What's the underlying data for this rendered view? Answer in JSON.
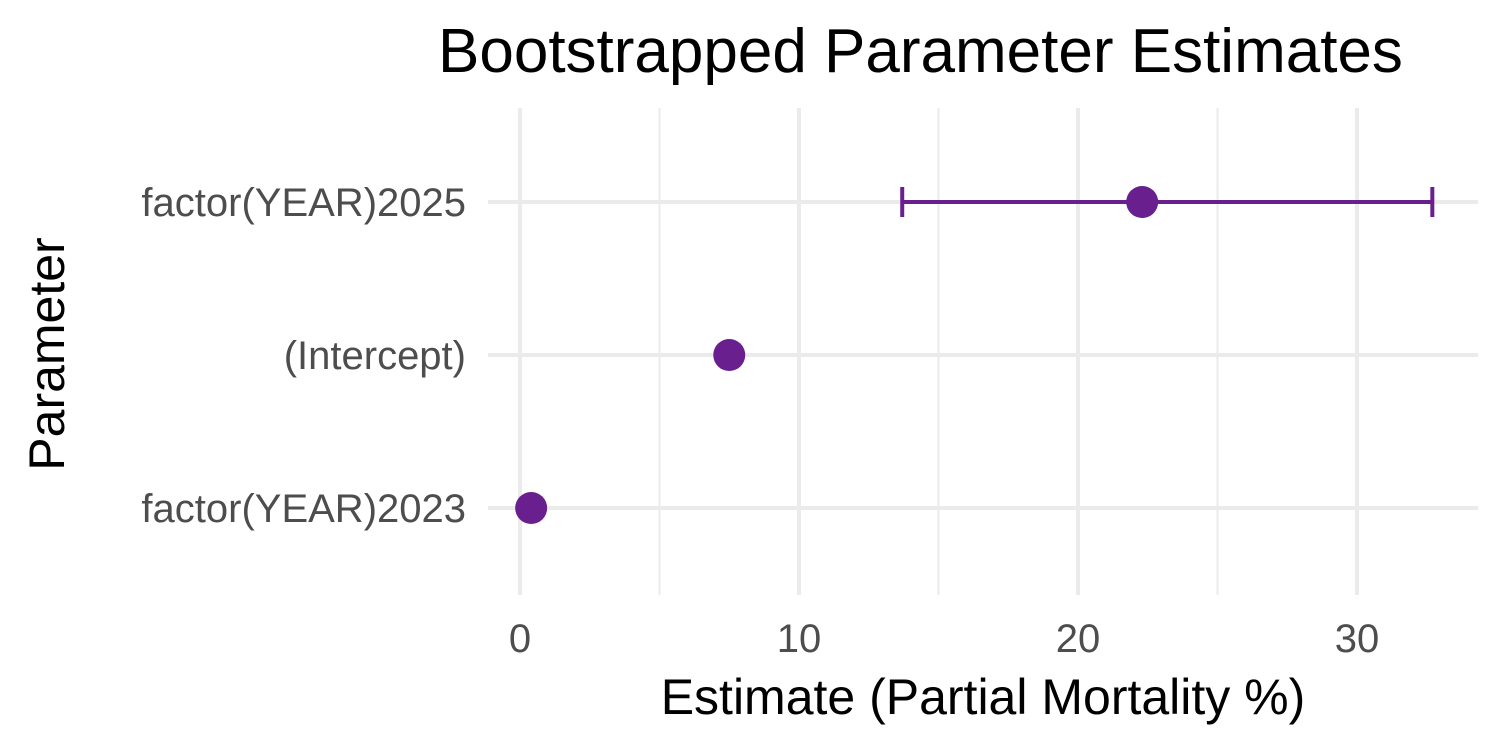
{
  "chart_data": {
    "type": "scatter",
    "title": "Bootstrapped Parameter Estimates",
    "xlabel": "Estimate (Partial Mortality %)",
    "ylabel": "Parameter",
    "xlim": [
      0,
      34
    ],
    "x_ticks": [
      0,
      10,
      20,
      30
    ],
    "x_tick_labels": [
      "0",
      "10",
      "20",
      "30"
    ],
    "grid": true,
    "categories": [
      "factor(YEAR)2023",
      "(Intercept)",
      "factor(YEAR)2025"
    ],
    "points": [
      {
        "label": "factor(YEAR)2023",
        "estimate": 0.4
      },
      {
        "label": "(Intercept)",
        "estimate": 7.5
      },
      {
        "label": "factor(YEAR)2025",
        "estimate": 22.3,
        "lower": 13.7,
        "upper": 32.7
      }
    ],
    "color": "#6a1f8f"
  }
}
